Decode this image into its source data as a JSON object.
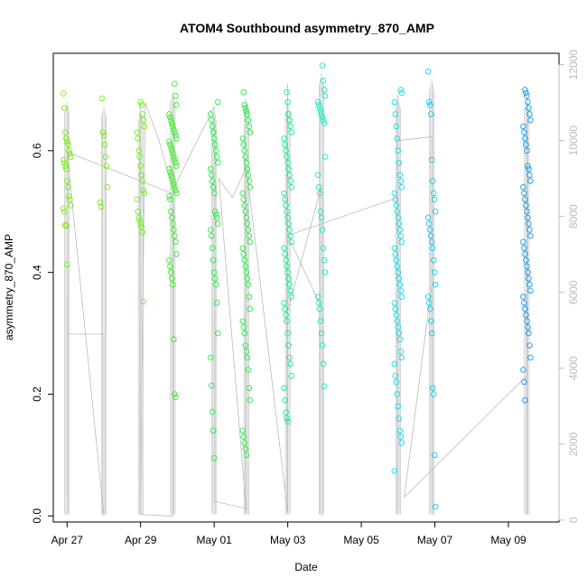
{
  "chart_data": {
    "type": "scatter",
    "title": "ATOM4 Southbound asymmetry_870_AMP",
    "xlabel": "Date",
    "ylabel": "asymmetry_870_AMP",
    "x_unit": "date",
    "xlim": [
      "2024-04-26T15:00",
      "2024-05-10T09:00"
    ],
    "ylim": [
      -0.01,
      0.76
    ],
    "y2lim": [
      -50,
      12300
    ],
    "x_ticks": [
      {
        "date": "2024-04-27",
        "label": "Apr 27"
      },
      {
        "date": "2024-04-29",
        "label": "Apr 29"
      },
      {
        "date": "2024-05-01",
        "label": "May 01"
      },
      {
        "date": "2024-05-03",
        "label": "May 03"
      },
      {
        "date": "2024-05-05",
        "label": "May 05"
      },
      {
        "date": "2024-05-07",
        "label": "May 07"
      },
      {
        "date": "2024-05-09",
        "label": "May 09"
      }
    ],
    "y_ticks": [
      0.0,
      0.2,
      0.4,
      0.6
    ],
    "y_tick_labels": [
      "0.0",
      "0.2",
      "0.4",
      "0.6"
    ],
    "y2_ticks": [
      0,
      2000,
      4000,
      6000,
      8000,
      10000,
      12000
    ],
    "y2_tick_labels": [
      "0",
      "2000",
      "4000",
      "6000",
      "8000",
      "10000",
      "12000"
    ],
    "grid": false,
    "legend": "none",
    "marker": "open-circle",
    "colors": {
      "clusters": [
        "#77ee11",
        "#6ef01a",
        "#33ee22",
        "#22ee44",
        "#11ee66",
        "#11ee88",
        "#11eebb",
        "#11ddee",
        "#11ccee",
        "#1199ee"
      ],
      "secondary": "#bbbbbb",
      "axis": "#000000",
      "secondary_axis": "#bbbbbb"
    },
    "clusters": [
      {
        "date": "2024-04-27T00:00",
        "color": "#77ee11",
        "values": [
          0.694,
          0.67,
          0.63,
          0.62,
          0.615,
          0.61,
          0.6,
          0.595,
          0.59,
          0.585,
          0.58,
          0.575,
          0.57,
          0.55,
          0.54,
          0.525,
          0.52,
          0.51,
          0.505,
          0.5,
          0.478,
          0.476,
          0.413
        ]
      },
      {
        "date": "2024-04-28T00:00",
        "color": "#77ee11",
        "values": [
          0.686,
          0.63,
          0.625,
          0.61,
          0.59,
          0.575,
          0.54,
          0.515,
          0.508
        ]
      },
      {
        "date": "2024-04-29T00:00",
        "color": "#6ef01a",
        "values": [
          0.68,
          0.675,
          0.66,
          0.65,
          0.64,
          0.63,
          0.62,
          0.6,
          0.59,
          0.575,
          0.56,
          0.55,
          0.535,
          0.53,
          0.52,
          0.5,
          0.49,
          0.485,
          0.48,
          0.475,
          0.466,
          0.352
        ]
      },
      {
        "date": "2024-04-29T21:00",
        "color": "#33ee22",
        "values": [
          0.71,
          0.69,
          0.675,
          0.66,
          0.655,
          0.65,
          0.645,
          0.64,
          0.635,
          0.63,
          0.625,
          0.62,
          0.615,
          0.61,
          0.605,
          0.6,
          0.595,
          0.59,
          0.585,
          0.58,
          0.575,
          0.57,
          0.565,
          0.56,
          0.555,
          0.55,
          0.545,
          0.54,
          0.535,
          0.53,
          0.525,
          0.52,
          0.5,
          0.49,
          0.48,
          0.47,
          0.46,
          0.45,
          0.43,
          0.42,
          0.41,
          0.4,
          0.39,
          0.38,
          0.29,
          0.2,
          0.195
        ]
      },
      {
        "date": "2024-05-01T00:00",
        "color": "#22ee44",
        "values": [
          0.68,
          0.66,
          0.65,
          0.64,
          0.63,
          0.62,
          0.61,
          0.6,
          0.59,
          0.58,
          0.57,
          0.56,
          0.55,
          0.54,
          0.53,
          0.5,
          0.495,
          0.49,
          0.48,
          0.47,
          0.46,
          0.44,
          0.42,
          0.4,
          0.39,
          0.38,
          0.35,
          0.3,
          0.26,
          0.214,
          0.171,
          0.14,
          0.095
        ]
      },
      {
        "date": "2024-05-01T21:00",
        "color": "#22ee44",
        "values": [
          0.696,
          0.675,
          0.67,
          0.665,
          0.66,
          0.65,
          0.64,
          0.63,
          0.62,
          0.61,
          0.6,
          0.59,
          0.58,
          0.57,
          0.56,
          0.55,
          0.54,
          0.53,
          0.52,
          0.51,
          0.5,
          0.49,
          0.48,
          0.47,
          0.46,
          0.45,
          0.44,
          0.43,
          0.42,
          0.41,
          0.4,
          0.39,
          0.38,
          0.36,
          0.34,
          0.32,
          0.31,
          0.3,
          0.28,
          0.27,
          0.26,
          0.24,
          0.21,
          0.19,
          0.14,
          0.13,
          0.12,
          0.11,
          0.1
        ]
      },
      {
        "date": "2024-05-03T00:00",
        "color": "#11ee88",
        "values": [
          0.696,
          0.68,
          0.66,
          0.65,
          0.64,
          0.63,
          0.62,
          0.61,
          0.6,
          0.59,
          0.58,
          0.57,
          0.56,
          0.55,
          0.54,
          0.53,
          0.52,
          0.51,
          0.5,
          0.49,
          0.48,
          0.47,
          0.46,
          0.45,
          0.44,
          0.43,
          0.42,
          0.41,
          0.4,
          0.39,
          0.38,
          0.37,
          0.36,
          0.35,
          0.34,
          0.33,
          0.32,
          0.3,
          0.28,
          0.26,
          0.25,
          0.23,
          0.21,
          0.19,
          0.17,
          0.16,
          0.155
        ]
      },
      {
        "date": "2024-05-03T22:00",
        "color": "#11eebb",
        "values": [
          0.74,
          0.715,
          0.7,
          0.69,
          0.68,
          0.675,
          0.67,
          0.665,
          0.66,
          0.655,
          0.65,
          0.645,
          0.59,
          0.56,
          0.54,
          0.53,
          0.5,
          0.49,
          0.47,
          0.44,
          0.42,
          0.4,
          0.36,
          0.35,
          0.34,
          0.32,
          0.3,
          0.28,
          0.25,
          0.213
        ]
      },
      {
        "date": "2024-05-06T00:00",
        "color": "#11ddee",
        "values": [
          0.7,
          0.695,
          0.68,
          0.66,
          0.64,
          0.62,
          0.6,
          0.58,
          0.56,
          0.55,
          0.54,
          0.53,
          0.52,
          0.51,
          0.5,
          0.49,
          0.48,
          0.47,
          0.46,
          0.45,
          0.44,
          0.43,
          0.42,
          0.41,
          0.4,
          0.39,
          0.38,
          0.37,
          0.36,
          0.35,
          0.34,
          0.33,
          0.32,
          0.31,
          0.3,
          0.29,
          0.27,
          0.26,
          0.25,
          0.23,
          0.22,
          0.2,
          0.18,
          0.16,
          0.14,
          0.13,
          0.12,
          0.074
        ]
      },
      {
        "date": "2024-05-06T22:00",
        "color": "#11ccee",
        "values": [
          0.73,
          0.68,
          0.675,
          0.66,
          0.585,
          0.55,
          0.53,
          0.52,
          0.5,
          0.49,
          0.48,
          0.47,
          0.46,
          0.45,
          0.44,
          0.42,
          0.4,
          0.38,
          0.36,
          0.35,
          0.34,
          0.32,
          0.3,
          0.21,
          0.2,
          0.1,
          0.015
        ]
      },
      {
        "date": "2024-05-09T12:00",
        "color": "#1199ee",
        "values": [
          0.7,
          0.695,
          0.69,
          0.68,
          0.67,
          0.66,
          0.65,
          0.64,
          0.63,
          0.62,
          0.61,
          0.6,
          0.575,
          0.57,
          0.56,
          0.55,
          0.54,
          0.53,
          0.52,
          0.51,
          0.5,
          0.49,
          0.48,
          0.47,
          0.46,
          0.45,
          0.44,
          0.43,
          0.42,
          0.41,
          0.4,
          0.39,
          0.38,
          0.37,
          0.36,
          0.35,
          0.34,
          0.33,
          0.32,
          0.31,
          0.3,
          0.28,
          0.26,
          0.24,
          0.22,
          0.19
        ]
      }
    ],
    "secondary_series": {
      "axis": "right",
      "style": "line",
      "x": [
        "2024-04-27T00:00",
        "2024-04-27T00:00",
        "2024-04-27T00:00",
        "2024-04-28T00:00",
        "2024-04-28T00:00",
        "2024-04-27T00:00",
        "2024-04-29T21:00",
        "2024-04-29T21:00",
        "2024-04-29T21:00",
        "2024-04-29T21:00",
        "2024-04-29T00:00",
        "2024-04-29T00:00",
        "2024-04-29T00:00",
        "2024-04-29T00:00",
        "2024-04-29T03:00",
        "2024-04-29T12:00",
        "2024-04-29T21:00",
        "2024-05-01T00:00",
        "2024-05-01T00:00",
        "2024-05-01T00:00",
        "2024-05-01T00:00",
        "2024-05-01T00:00",
        "2024-05-01T21:00",
        "2024-05-01T21:00",
        "2024-05-01T21:00",
        "2024-05-01T21:00",
        "2024-05-01T03:00",
        "2024-05-01T12:00",
        "2024-05-01T21:00",
        "2024-05-03T00:00",
        "2024-05-03T00:00",
        "2024-05-03T00:00",
        "2024-05-03T00:00",
        "2024-05-03T22:00",
        "2024-05-03T22:00",
        "2024-05-03T22:00",
        "2024-05-03T22:00",
        "2024-05-03T00:00",
        "2024-05-06T00:00",
        "2024-05-06T00:00",
        "2024-05-06T00:00",
        "2024-05-06T00:00",
        "2024-05-06T22:00",
        "2024-05-06T22:00",
        "2024-05-06T22:00",
        "2024-05-06T22:00",
        "2024-05-06T04:00",
        "2024-05-09T12:00",
        "2024-05-09T12:00",
        "2024-05-09T12:00",
        "2024-05-09T12:00",
        "2024-05-09T12:00"
      ],
      "y": [
        5900,
        600,
        4900,
        4900,
        100,
        9700,
        8600,
        150,
        6200,
        100,
        150,
        150,
        11000,
        600,
        11000,
        10000,
        8700,
        10900,
        700,
        600,
        8600,
        500,
        300,
        8800,
        8300,
        200,
        9000,
        8500,
        9300,
        200,
        7400,
        11500,
        5500,
        8800,
        100,
        4400,
        5600,
        7500,
        8500,
        300,
        11200,
        10000,
        10100,
        250,
        9800,
        6200,
        600,
        3800,
        9600,
        200,
        10500,
        150
      ]
    }
  }
}
